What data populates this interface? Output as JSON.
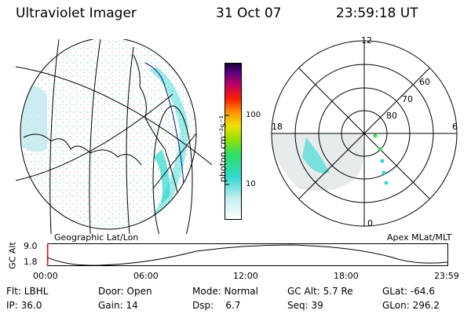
{
  "header": {
    "instrument": "Ultraviolet Imager",
    "date": "31 Oct 07",
    "time": "23:59:18 UT"
  },
  "colorbar": {
    "unit_label": "photon cm⁻²s⁻¹",
    "ticks": [
      "100",
      "10"
    ]
  },
  "geo_panel": {
    "label": "Geographic Lat/Lon"
  },
  "polar_panel": {
    "label": "Apex MLat/MLT",
    "mlt_labels": {
      "top": "12",
      "left": "18",
      "right": "6",
      "bottom": "0"
    },
    "lat_labels": [
      "60",
      "70",
      "80"
    ]
  },
  "altitude_strip": {
    "ylabel": "GC Alt",
    "y_top": "9.0",
    "y_bottom": "1.8",
    "time_ticks": [
      "00:00",
      "06:00",
      "12:00",
      "18:00",
      "23:59"
    ]
  },
  "info": {
    "flt": "Flt: LBHL",
    "door": "Door: Open",
    "mode": "Mode: Normal",
    "gc_alt": "GC Alt: 5.7 Re",
    "glat": "GLat: -64.6",
    "ip": "IP: 36.0",
    "gain": "Gain: 14",
    "dsp": "Dsp:    6.7",
    "seq": "Seq: 39",
    "glon": "GLon: 296.2"
  },
  "colors": {
    "emission": "#2fd8d0",
    "emission_faint": "#bfe9ee",
    "noise": "#d8dde0",
    "orbit_marker": "#ff0000"
  }
}
